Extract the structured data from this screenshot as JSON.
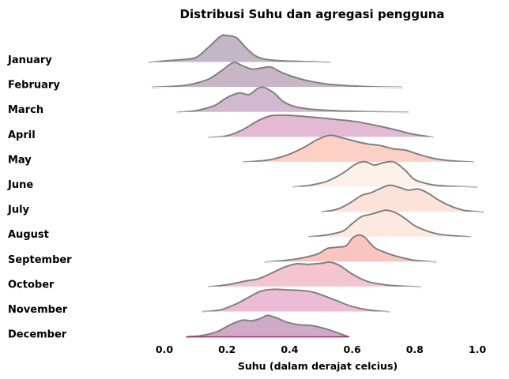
{
  "chart_data": {
    "type": "ridgeline",
    "title": "Distribusi Suhu dan agregasi pengguna",
    "xlabel": "Suhu (dalam derajat celcius)",
    "ylabel": "",
    "xlim": [
      -0.05,
      1.02
    ],
    "xticks": [
      "0.0",
      "0.2",
      "0.4",
      "0.6",
      "0.8",
      "1.0"
    ],
    "grid": false,
    "series": [
      {
        "name": "January",
        "color": "#c3b6c6",
        "x": [
          -0.05,
          0.0,
          0.05,
          0.1,
          0.14,
          0.18,
          0.2,
          0.23,
          0.26,
          0.29,
          0.32,
          0.37,
          0.42,
          0.47,
          0.53
        ],
        "density": [
          0.0,
          0.05,
          0.1,
          0.18,
          0.55,
          0.98,
          1.0,
          0.92,
          0.55,
          0.25,
          0.12,
          0.06,
          0.04,
          0.02,
          0.0
        ]
      },
      {
        "name": "February",
        "color": "#c8b6c7",
        "x": [
          -0.04,
          0.02,
          0.08,
          0.14,
          0.18,
          0.22,
          0.25,
          0.28,
          0.31,
          0.34,
          0.37,
          0.41,
          0.46,
          0.52,
          0.59,
          0.66,
          0.76
        ],
        "density": [
          0.0,
          0.03,
          0.1,
          0.3,
          0.6,
          0.92,
          0.8,
          0.68,
          0.72,
          0.76,
          0.58,
          0.4,
          0.24,
          0.12,
          0.06,
          0.02,
          0.0
        ]
      },
      {
        "name": "March",
        "color": "#d2b9cf",
        "x": [
          0.04,
          0.1,
          0.16,
          0.2,
          0.24,
          0.27,
          0.3,
          0.32,
          0.35,
          0.38,
          0.42,
          0.48,
          0.56,
          0.66,
          0.78
        ],
        "density": [
          0.0,
          0.06,
          0.25,
          0.55,
          0.72,
          0.66,
          0.9,
          0.92,
          0.72,
          0.4,
          0.2,
          0.1,
          0.05,
          0.02,
          0.0
        ]
      },
      {
        "name": "April",
        "color": "#e3b9d3",
        "x": [
          0.14,
          0.2,
          0.25,
          0.3,
          0.34,
          0.38,
          0.42,
          0.46,
          0.5,
          0.55,
          0.6,
          0.65,
          0.7,
          0.75,
          0.8,
          0.86
        ],
        "density": [
          0.0,
          0.05,
          0.28,
          0.62,
          0.8,
          0.82,
          0.8,
          0.76,
          0.72,
          0.66,
          0.6,
          0.5,
          0.38,
          0.24,
          0.1,
          0.0
        ]
      },
      {
        "name": "May",
        "color": "#fcd0c4",
        "x": [
          0.25,
          0.3,
          0.35,
          0.4,
          0.45,
          0.49,
          0.53,
          0.57,
          0.61,
          0.65,
          0.69,
          0.73,
          0.77,
          0.81,
          0.86,
          0.92,
          0.99
        ],
        "density": [
          0.0,
          0.04,
          0.12,
          0.3,
          0.58,
          0.85,
          1.0,
          0.9,
          0.78,
          0.68,
          0.62,
          0.5,
          0.45,
          0.3,
          0.14,
          0.05,
          0.0
        ]
      },
      {
        "name": "June",
        "color": "#fdf1e9",
        "x": [
          0.41,
          0.47,
          0.52,
          0.57,
          0.61,
          0.64,
          0.67,
          0.69,
          0.72,
          0.74,
          0.77,
          0.8,
          0.85,
          0.9,
          1.0
        ],
        "density": [
          0.0,
          0.08,
          0.22,
          0.52,
          0.85,
          0.95,
          0.82,
          0.88,
          0.95,
          0.9,
          0.62,
          0.28,
          0.1,
          0.04,
          0.0
        ]
      },
      {
        "name": "July",
        "color": "#fde2d9",
        "x": [
          0.5,
          0.55,
          0.59,
          0.63,
          0.66,
          0.69,
          0.72,
          0.75,
          0.78,
          0.81,
          0.84,
          0.88,
          0.92,
          0.96,
          1.02
        ],
        "density": [
          0.0,
          0.1,
          0.32,
          0.62,
          0.72,
          0.88,
          1.0,
          0.92,
          0.82,
          0.86,
          0.72,
          0.42,
          0.2,
          0.06,
          0.0
        ]
      },
      {
        "name": "August",
        "color": "#fde9e0",
        "x": [
          0.46,
          0.52,
          0.57,
          0.6,
          0.63,
          0.66,
          0.69,
          0.71,
          0.74,
          0.77,
          0.8,
          0.84,
          0.88,
          0.93,
          0.98
        ],
        "density": [
          0.0,
          0.08,
          0.22,
          0.5,
          0.76,
          0.85,
          0.95,
          1.0,
          0.9,
          0.68,
          0.42,
          0.22,
          0.1,
          0.04,
          0.0
        ]
      },
      {
        "name": "September",
        "color": "#fac4c0",
        "x": [
          0.32,
          0.38,
          0.44,
          0.49,
          0.52,
          0.55,
          0.58,
          0.6,
          0.62,
          0.64,
          0.67,
          0.7,
          0.74,
          0.8,
          0.87
        ],
        "density": [
          0.0,
          0.05,
          0.15,
          0.3,
          0.5,
          0.55,
          0.6,
          0.88,
          1.0,
          0.92,
          0.55,
          0.38,
          0.22,
          0.06,
          0.0
        ]
      },
      {
        "name": "October",
        "color": "#f4c4d0",
        "x": [
          0.14,
          0.2,
          0.26,
          0.3,
          0.34,
          0.38,
          0.42,
          0.46,
          0.5,
          0.53,
          0.56,
          0.6,
          0.65,
          0.72,
          0.82
        ],
        "density": [
          0.0,
          0.08,
          0.22,
          0.3,
          0.5,
          0.72,
          0.86,
          0.84,
          0.88,
          0.92,
          0.8,
          0.48,
          0.2,
          0.06,
          0.0
        ]
      },
      {
        "name": "November",
        "color": "#ecbcd6",
        "x": [
          0.12,
          0.18,
          0.23,
          0.27,
          0.31,
          0.35,
          0.39,
          0.43,
          0.47,
          0.51,
          0.55,
          0.6,
          0.66,
          0.72
        ],
        "density": [
          0.0,
          0.08,
          0.3,
          0.55,
          0.78,
          0.84,
          0.82,
          0.8,
          0.75,
          0.6,
          0.42,
          0.2,
          0.06,
          0.0
        ]
      },
      {
        "name": "December",
        "color": "#cfaac8",
        "x": [
          0.07,
          0.12,
          0.17,
          0.21,
          0.25,
          0.28,
          0.31,
          0.33,
          0.36,
          0.39,
          0.43,
          0.47,
          0.52,
          0.56,
          0.59
        ],
        "density": [
          0.0,
          0.05,
          0.2,
          0.45,
          0.62,
          0.6,
          0.7,
          0.8,
          0.7,
          0.55,
          0.45,
          0.42,
          0.28,
          0.12,
          0.0
        ]
      }
    ]
  }
}
